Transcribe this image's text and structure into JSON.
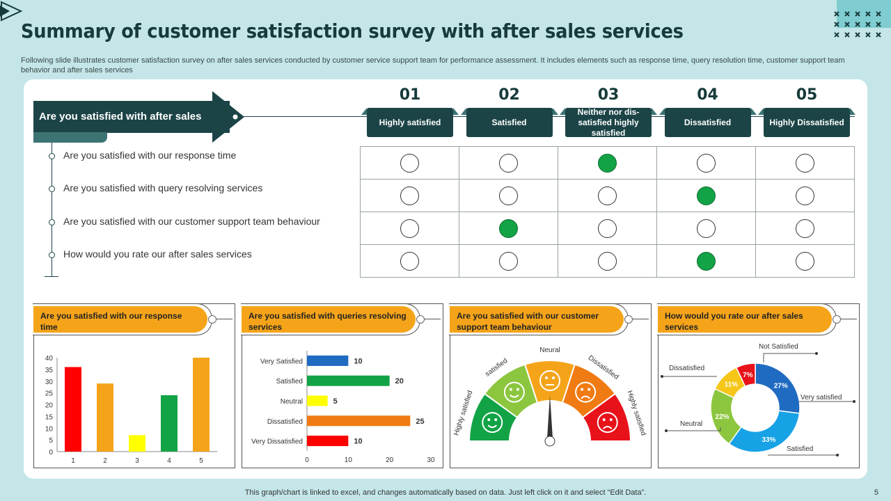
{
  "slide": {
    "title": "Summary of customer satisfaction survey with after sales services",
    "subtitle": "Following slide illustrates customer satisfaction survey on after sales services conducted by customer service support team for performance assessment. It includes elements such as response time, query resolution time, customer support team behavior and after sales services",
    "footer": "This graph/chart is linked to excel, and changes automatically based on data. Just left click on it and select “Edit Data”.",
    "page_number": "5"
  },
  "survey": {
    "main_question": "Are you satisfied with after sales services?",
    "columns": [
      {
        "num": "01",
        "label": "Highly satisfied"
      },
      {
        "num": "02",
        "label": "Satisfied"
      },
      {
        "num": "03",
        "label": "Neither nor dis-satisfied highly satisfied"
      },
      {
        "num": "04",
        "label": "Dissatisfied"
      },
      {
        "num": "05",
        "label": "Highly Dissatisfied"
      }
    ],
    "questions": [
      {
        "text": "Are you satisfied with our response time",
        "selected": 2
      },
      {
        "text": "Are you satisfied with query resolving services",
        "selected": 3
      },
      {
        "text": "Are you satisfied with our customer support team behaviour",
        "selected": 1
      },
      {
        "text": "How would you rate our after sales services",
        "selected": 3
      }
    ],
    "selected_color": "#12a346"
  },
  "panels": {
    "p1": {
      "title": "Are you satisfied with our response time"
    },
    "p2": {
      "title": "Are you satisfied with queries resolving services"
    },
    "p3": {
      "title": "Are you satisfied with our customer support team behaviour"
    },
    "p4": {
      "title": "How would you rate our after sales services"
    }
  },
  "chart_data": [
    {
      "type": "bar",
      "categories": [
        "1",
        "2",
        "3",
        "4",
        "5"
      ],
      "values": [
        36,
        29,
        7,
        24,
        40
      ],
      "colors": [
        "#ff0000",
        "#f5a41a",
        "#ffff00",
        "#12a346",
        "#f5a41a"
      ],
      "ylim": [
        0,
        40
      ],
      "yticks": [
        0,
        5,
        10,
        15,
        20,
        25,
        30,
        35,
        40
      ],
      "grid": false
    },
    {
      "type": "bar",
      "orientation": "horizontal",
      "categories": [
        "Very Satisfied",
        "Satisfied",
        "Neutral",
        "Dissatisfied",
        "Very Dissatisfied"
      ],
      "values": [
        10,
        20,
        5,
        25,
        10
      ],
      "value_labels": [
        "10",
        "20",
        "5",
        "25",
        "10"
      ],
      "colors": [
        "#1f6bc2",
        "#12a346",
        "#ffff00",
        "#f07b12",
        "#ff0000"
      ],
      "xlim": [
        0,
        30
      ],
      "xticks": [
        0,
        10,
        20,
        30
      ],
      "grid": false
    },
    {
      "type": "gauge",
      "segments": [
        {
          "label": "Highly satisfied",
          "color": "#12a346"
        },
        {
          "label": "satisfied",
          "color": "#8cc63f"
        },
        {
          "label": "Neural",
          "color": "#f5a41a"
        },
        {
          "label": "Dissatisfied",
          "color": "#f07b12"
        },
        {
          "label": "Highly satisfied",
          "color": "#e8121b"
        }
      ],
      "needle_fraction": 0.5
    },
    {
      "type": "pie",
      "donut": true,
      "slices": [
        {
          "label": "Very satisfied",
          "value": 27,
          "text": "27%",
          "color": "#1f6bc2"
        },
        {
          "label": "Satisfied",
          "value": 33,
          "text": "33%",
          "color": "#17a2e6"
        },
        {
          "label": "Neutral",
          "value": 22,
          "text": "22%",
          "color": "#8cc63f"
        },
        {
          "label": "Dissatisfied",
          "value": 11,
          "text": "11%",
          "color": "#f5c518"
        },
        {
          "label": "Not Satisfied",
          "value": 7,
          "text": "7%",
          "color": "#e8121b"
        }
      ]
    }
  ]
}
